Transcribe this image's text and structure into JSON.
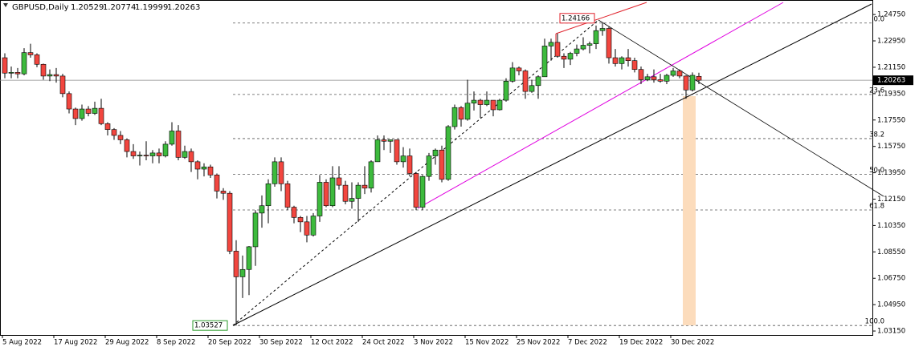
{
  "chart_data": {
    "type": "candlestick",
    "header": {
      "symbol": "GBPUSD,Daily",
      "ohlc": [
        "1.20529",
        "1.20774",
        "1.19999",
        "1.20263"
      ]
    },
    "categories": [
      "5 Aug 2022",
      null,
      null,
      null,
      null,
      null,
      null,
      null,
      "17 Aug 2022",
      null,
      null,
      null,
      null,
      null,
      null,
      null,
      "29 Aug 2022",
      null,
      null,
      null,
      null,
      null,
      null,
      null,
      "8 Sep 2022",
      null,
      null,
      null,
      null,
      null,
      null,
      null,
      "20 Sep 2022",
      null,
      null,
      null,
      null,
      null,
      null,
      null,
      "30 Sep 2022",
      null,
      null,
      null,
      null,
      null,
      null,
      null,
      "12 Oct 2022",
      null,
      null,
      null,
      null,
      null,
      null,
      null,
      "24 Oct 2022",
      null,
      null,
      null,
      null,
      null,
      null,
      null,
      "3 Nov 2022",
      null,
      null,
      null,
      null,
      null,
      null,
      null,
      "15 Nov 2022",
      null,
      null,
      null,
      null,
      null,
      null,
      null,
      "25 Nov 2022",
      null,
      null,
      null,
      null,
      null,
      null,
      null,
      "7 Dec 2022",
      null,
      null,
      null,
      null,
      null,
      null,
      null,
      "19 Dec 2022",
      null,
      null,
      null,
      null,
      null,
      null,
      null,
      "30 Dec 2022",
      null,
      null,
      null,
      null
    ],
    "open": [
      1.218,
      1.2075,
      1.208,
      1.207,
      1.2215,
      1.22,
      1.2135,
      1.2055,
      1.2065,
      1.2055,
      1.1935,
      1.183,
      1.1765,
      1.183,
      1.18,
      1.1835,
      1.173,
      1.169,
      1.165,
      1.162,
      1.154,
      1.151,
      1.1515,
      1.151,
      1.153,
      1.151,
      1.159,
      1.168,
      1.15,
      1.154,
      1.147,
      1.142,
      1.1435,
      1.138,
      1.127,
      1.1255,
      1.086,
      1.0685,
      1.0735,
      1.089,
      1.112,
      1.117,
      1.132,
      1.147,
      1.132,
      1.116,
      1.109,
      1.106,
      1.097,
      1.11,
      1.133,
      1.117,
      1.136,
      1.131,
      1.12,
      1.122,
      1.131,
      1.129,
      1.147,
      1.162,
      1.161,
      1.162,
      1.147,
      1.151,
      1.139,
      1.116,
      1.137,
      1.151,
      1.155,
      1.135,
      1.171,
      1.184,
      1.176,
      1.187,
      1.189,
      1.186,
      1.189,
      1.1825,
      1.189,
      1.202,
      1.211,
      1.209,
      1.195,
      1.199,
      1.205,
      1.226,
      1.2285,
      1.219,
      1.217,
      1.221,
      1.224,
      1.2265,
      1.2275,
      1.2365,
      1.238,
      1.218,
      1.214,
      1.218,
      1.216,
      1.21,
      1.203,
      1.205,
      1.203,
      1.202,
      1.206,
      1.209,
      1.2055,
      1.196,
      1.20529
    ],
    "high": [
      1.221,
      1.212,
      1.211,
      1.2245,
      1.2275,
      1.221,
      1.214,
      1.21,
      1.211,
      1.207,
      1.195,
      1.184,
      1.186,
      1.185,
      1.188,
      1.19,
      1.174,
      1.17,
      1.168,
      1.163,
      1.159,
      1.154,
      1.161,
      1.155,
      1.156,
      1.161,
      1.174,
      1.172,
      1.158,
      1.156,
      1.148,
      1.146,
      1.145,
      1.139,
      1.129,
      1.127,
      1.0935,
      1.083,
      1.0895,
      1.114,
      1.124,
      1.135,
      1.15,
      1.15,
      1.134,
      1.117,
      1.11,
      1.11,
      1.112,
      1.138,
      1.135,
      1.144,
      1.144,
      1.134,
      1.133,
      1.133,
      1.144,
      1.148,
      1.165,
      1.165,
      1.162,
      1.162,
      1.157,
      1.156,
      1.14,
      1.138,
      1.153,
      1.156,
      1.158,
      1.172,
      1.186,
      1.185,
      1.203,
      1.195,
      1.19,
      1.195,
      1.189,
      1.19,
      1.204,
      1.215,
      1.212,
      1.21,
      1.203,
      1.206,
      1.231,
      1.231,
      1.2345,
      1.221,
      1.222,
      1.227,
      1.232,
      1.229,
      1.24,
      1.24166,
      1.239,
      1.224,
      1.219,
      1.224,
      1.218,
      1.212,
      1.207,
      1.21,
      1.207,
      1.207,
      1.211,
      1.21,
      1.206,
      1.208,
      1.20774
    ],
    "low": [
      1.204,
      1.204,
      1.204,
      1.206,
      1.218,
      1.2115,
      1.203,
      1.202,
      1.201,
      1.191,
      1.18,
      1.172,
      1.175,
      1.178,
      1.179,
      1.172,
      1.165,
      1.162,
      1.159,
      1.15,
      1.149,
      1.1445,
      1.148,
      1.146,
      1.146,
      1.15,
      1.158,
      1.148,
      1.149,
      1.14,
      1.135,
      1.137,
      1.136,
      1.122,
      1.121,
      1.084,
      1.03527,
      1.054,
      1.056,
      1.076,
      1.102,
      1.105,
      1.13,
      1.127,
      1.114,
      1.105,
      1.099,
      1.092,
      1.096,
      1.106,
      1.116,
      1.116,
      1.128,
      1.118,
      1.115,
      1.106,
      1.125,
      1.126,
      1.147,
      1.155,
      1.153,
      1.145,
      1.143,
      1.137,
      1.114,
      1.114,
      1.134,
      1.145,
      1.133,
      1.134,
      1.169,
      1.171,
      1.175,
      1.182,
      1.177,
      1.185,
      1.178,
      1.182,
      1.188,
      1.201,
      1.206,
      1.19,
      1.194,
      1.19,
      1.205,
      1.216,
      1.218,
      1.211,
      1.213,
      1.219,
      1.223,
      1.221,
      1.224,
      1.233,
      1.214,
      1.212,
      1.21,
      1.212,
      1.208,
      1.2,
      1.202,
      1.201,
      1.201,
      1.2,
      1.205,
      1.204,
      1.19,
      1.195,
      1.19999
    ],
    "close": [
      1.2075,
      1.208,
      1.207,
      1.2215,
      1.22,
      1.2135,
      1.2055,
      1.2065,
      1.2055,
      1.1935,
      1.183,
      1.1765,
      1.183,
      1.18,
      1.1835,
      1.173,
      1.169,
      1.165,
      1.162,
      1.154,
      1.151,
      1.1515,
      1.151,
      1.153,
      1.151,
      1.159,
      1.168,
      1.15,
      1.154,
      1.147,
      1.142,
      1.1435,
      1.138,
      1.127,
      1.1255,
      1.086,
      1.0685,
      1.0735,
      1.089,
      1.112,
      1.117,
      1.132,
      1.147,
      1.132,
      1.116,
      1.109,
      1.106,
      1.097,
      1.11,
      1.133,
      1.117,
      1.136,
      1.131,
      1.12,
      1.122,
      1.131,
      1.129,
      1.147,
      1.162,
      1.161,
      1.162,
      1.147,
      1.151,
      1.139,
      1.116,
      1.137,
      1.151,
      1.155,
      1.135,
      1.171,
      1.184,
      1.176,
      1.187,
      1.189,
      1.186,
      1.189,
      1.1825,
      1.189,
      1.202,
      1.211,
      1.209,
      1.195,
      1.199,
      1.205,
      1.226,
      1.2285,
      1.219,
      1.217,
      1.221,
      1.224,
      1.2265,
      1.2275,
      1.2365,
      1.238,
      1.218,
      1.214,
      1.218,
      1.216,
      1.21,
      1.203,
      1.205,
      1.203,
      1.202,
      1.206,
      1.209,
      1.2055,
      1.196,
      1.206,
      1.20263
    ],
    "up_color": "#3dba3d",
    "down_color": "#f2463f",
    "ylim": [
      1.0288,
      1.2574
    ],
    "yticks": [
      {
        "value": 1.2475,
        "label": "1.24750"
      },
      {
        "value": 1.2295,
        "label": "1.22950"
      },
      {
        "value": 1.2115,
        "label": "1.21150"
      },
      {
        "value": 1.1935,
        "label": "1.19350"
      },
      {
        "value": 1.1755,
        "label": "1.17550"
      },
      {
        "value": 1.1575,
        "label": "1.15750"
      },
      {
        "value": 1.1395,
        "label": "1.13950"
      },
      {
        "value": 1.1215,
        "label": "1.12150"
      },
      {
        "value": 1.1035,
        "label": "1.10350"
      },
      {
        "value": 1.0855,
        "label": "1.08550"
      },
      {
        "value": 1.0675,
        "label": "1.06750"
      },
      {
        "value": 1.0495,
        "label": "1.04950"
      },
      {
        "value": 1.0315,
        "label": "1.03150"
      }
    ],
    "last_price": {
      "value": 1.20263,
      "label": "1.20263"
    },
    "high_mark": {
      "value": 1.24166,
      "label": "1.24166"
    },
    "low_mark": {
      "value": 1.03527,
      "label": "1.03527"
    },
    "fib_levels": {
      "labels": [
        "0.0",
        "23.6",
        "38.2",
        "50.0",
        "61.8",
        "100.0"
      ],
      "prices": [
        1.24166,
        1.19295,
        1.16282,
        1.13847,
        1.11411,
        1.03527
      ]
    }
  }
}
